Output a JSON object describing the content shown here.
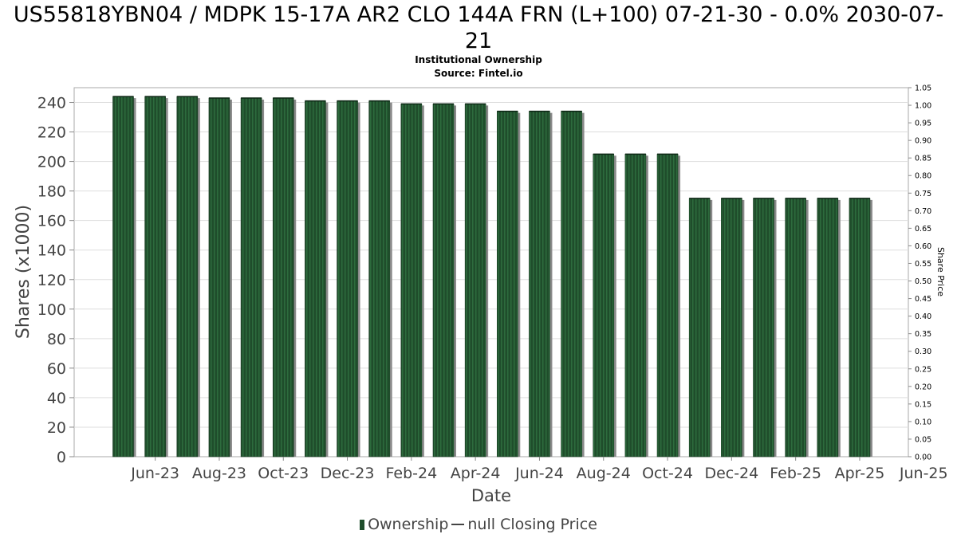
{
  "chart_data": {
    "type": "bar",
    "title": "US55818YBN04 / MDPK 15-17A AR2 CLO 144A FRN (L+100) 07-21-30 - 0.0% 2030-07-21",
    "subtitle_1": "Institutional Ownership",
    "subtitle_2": "Source: Fintel.io",
    "xlabel": "Date",
    "ylabel": "Shares (x1000)",
    "y2label": "Share Price",
    "ylim": [
      0,
      250
    ],
    "y2lim": [
      0,
      1.05
    ],
    "yticks": [
      "0",
      "20",
      "40",
      "60",
      "80",
      "100",
      "120",
      "140",
      "160",
      "180",
      "200",
      "220",
      "240"
    ],
    "y2ticks": [
      "0.00",
      "0.05",
      "0.10",
      "0.15",
      "0.20",
      "0.25",
      "0.30",
      "0.35",
      "0.40",
      "0.45",
      "0.50",
      "0.55",
      "0.60",
      "0.65",
      "0.70",
      "0.75",
      "0.80",
      "0.85",
      "0.90",
      "0.95",
      "1.00",
      "1.05"
    ],
    "xticks": [
      "Jun-23",
      "Aug-23",
      "Oct-23",
      "Dec-23",
      "Feb-24",
      "Apr-24",
      "Jun-24",
      "Aug-24",
      "Oct-24",
      "Dec-24",
      "Feb-25",
      "Apr-25",
      "Jun-25"
    ],
    "series": [
      {
        "name": "Ownership",
        "values": [
          244,
          244,
          244,
          243,
          243,
          243,
          241,
          241,
          241,
          239,
          239,
          239,
          234,
          234,
          234,
          205,
          205,
          205,
          175,
          175,
          175,
          175,
          175,
          175
        ]
      },
      {
        "name": "null Closing Price",
        "values": []
      }
    ],
    "legend": {
      "position": "bottom",
      "entries": [
        "Ownership",
        "null Closing Price"
      ]
    },
    "colors": {
      "bar": "#1f4d2b",
      "bar_stripe": "#2c6a3c",
      "shadow": "#8a8a8a",
      "grid": "#dddddd"
    }
  }
}
